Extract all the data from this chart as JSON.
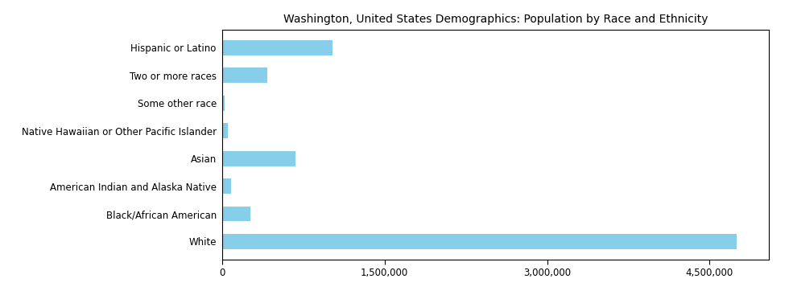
{
  "title": "Washington, United States Demographics: Population by Race and Ethnicity",
  "categories": [
    "White",
    "Black/African American",
    "American Indian and Alaska Native",
    "Asian",
    "Native Hawaiian or Other Pacific Islander",
    "Some other race",
    "Two or more races",
    "Hispanic or Latino"
  ],
  "values": [
    4750000,
    260000,
    85000,
    680000,
    55000,
    25000,
    420000,
    1020000
  ],
  "bar_color": "#87CEEB",
  "xlim": [
    0,
    5050000
  ],
  "xticks": [
    0,
    1500000,
    3000000,
    4500000
  ],
  "tick_labels": [
    "0",
    "1,500,000",
    "3,000,000",
    "4,500,000"
  ],
  "title_fontsize": 10,
  "label_fontsize": 8.5,
  "tick_fontsize": 8.5,
  "background_color": "#ffffff"
}
